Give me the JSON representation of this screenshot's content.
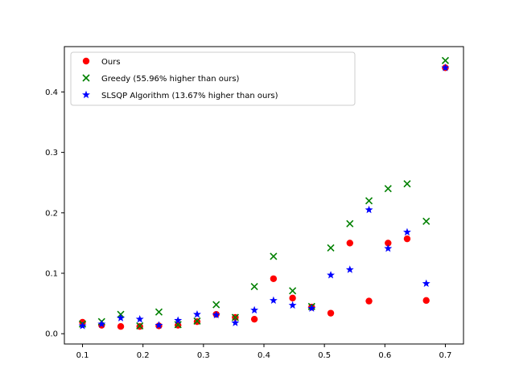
{
  "chart_data": {
    "type": "scatter",
    "title": "",
    "xlabel": "",
    "ylabel": "",
    "xlim": [
      0.07,
      0.73
    ],
    "ylim": [
      -0.017,
      0.475
    ],
    "x_ticks": [
      0.1,
      0.2,
      0.3,
      0.4,
      0.5,
      0.6,
      0.7
    ],
    "x_tick_labels": [
      "0.1",
      "0.2",
      "0.3",
      "0.4",
      "0.5",
      "0.6",
      "0.7"
    ],
    "y_ticks": [
      0.0,
      0.1,
      0.2,
      0.3,
      0.4
    ],
    "y_tick_labels": [
      "0.0",
      "0.1",
      "0.2",
      "0.3",
      "0.4"
    ],
    "grid": false,
    "legend_position": "upper-left",
    "x": [
      0.1,
      0.1316,
      0.1632,
      0.1947,
      0.2263,
      0.2579,
      0.2895,
      0.3211,
      0.3526,
      0.3842,
      0.4158,
      0.4474,
      0.4789,
      0.5105,
      0.5421,
      0.5737,
      0.6053,
      0.6368,
      0.6684,
      0.7
    ],
    "series": [
      {
        "name": "Ours",
        "marker": "circle",
        "color": "#ff0000",
        "values": [
          0.019,
          0.014,
          0.012,
          0.012,
          0.013,
          0.014,
          0.02,
          0.032,
          0.027,
          0.024,
          0.091,
          0.059,
          0.044,
          0.034,
          0.15,
          0.054,
          0.15,
          0.157,
          0.055,
          0.44
        ]
      },
      {
        "name": "Greedy (55.96% higher than ours)",
        "marker": "x",
        "color": "#008000",
        "values": [
          0.016,
          0.02,
          0.032,
          0.013,
          0.036,
          0.015,
          0.021,
          0.048,
          0.027,
          0.078,
          0.128,
          0.071,
          0.045,
          0.142,
          0.182,
          0.22,
          0.24,
          0.248,
          0.186,
          0.452
        ]
      },
      {
        "name": "SLSQP Algorithm (13.67% higher than ours)",
        "marker": "star",
        "color": "#0000ff",
        "values": [
          0.013,
          0.016,
          0.026,
          0.024,
          0.014,
          0.022,
          0.032,
          0.031,
          0.018,
          0.039,
          0.055,
          0.047,
          0.042,
          0.097,
          0.106,
          0.205,
          0.141,
          0.168,
          0.083,
          0.44
        ]
      }
    ]
  }
}
